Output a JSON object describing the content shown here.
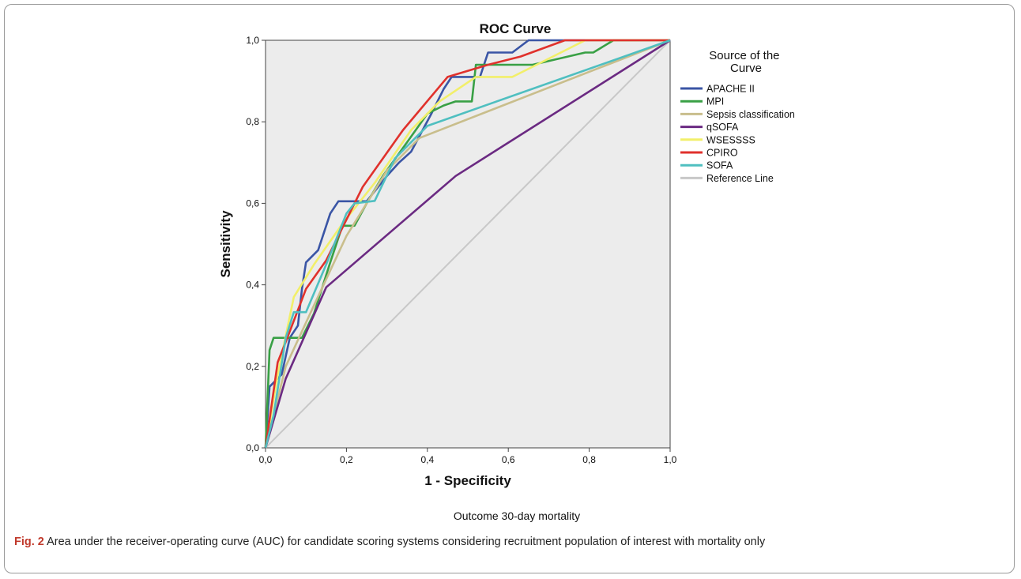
{
  "figure": {
    "label": "Fig. 2",
    "caption": "Area under the receiver-operating curve (AUC) for candidate scoring systems considering recruitment population of interest with mortality only"
  },
  "chart_data": {
    "type": "line",
    "title": "ROC Curve",
    "subtitle": "Outcome 30-day mortality",
    "xlabel": "1 - Specificity",
    "ylabel": "Sensitivity",
    "xlim": [
      0,
      1
    ],
    "ylim": [
      0,
      1
    ],
    "xticks": [
      "0,0",
      "0,2",
      "0,4",
      "0,6",
      "0,8",
      "1,0"
    ],
    "yticks": [
      "0,0",
      "0,2",
      "0,4",
      "0,6",
      "0,8",
      "1,0"
    ],
    "grid": false,
    "legend_title": "Source of the Curve",
    "legend_position": "right",
    "series": [
      {
        "name": "APACHE II",
        "color": "#3a55a5",
        "points": [
          [
            0,
            0
          ],
          [
            0.01,
            0.15
          ],
          [
            0.04,
            0.18
          ],
          [
            0.06,
            0.27
          ],
          [
            0.08,
            0.3
          ],
          [
            0.09,
            0.39
          ],
          [
            0.1,
            0.455
          ],
          [
            0.13,
            0.485
          ],
          [
            0.16,
            0.575
          ],
          [
            0.18,
            0.605
          ],
          [
            0.25,
            0.605
          ],
          [
            0.3,
            0.667
          ],
          [
            0.33,
            0.7
          ],
          [
            0.36,
            0.727
          ],
          [
            0.41,
            0.82
          ],
          [
            0.44,
            0.88
          ],
          [
            0.46,
            0.91
          ],
          [
            0.51,
            0.91
          ],
          [
            0.53,
            0.91
          ],
          [
            0.55,
            0.97
          ],
          [
            0.61,
            0.97
          ],
          [
            0.65,
            1.0
          ],
          [
            1.0,
            1.0
          ]
        ]
      },
      {
        "name": "MPI",
        "color": "#39a045",
        "points": [
          [
            0,
            0
          ],
          [
            0.01,
            0.24
          ],
          [
            0.02,
            0.27
          ],
          [
            0.09,
            0.27
          ],
          [
            0.12,
            0.33
          ],
          [
            0.16,
            0.455
          ],
          [
            0.19,
            0.545
          ],
          [
            0.22,
            0.545
          ],
          [
            0.25,
            0.6
          ],
          [
            0.29,
            0.667
          ],
          [
            0.35,
            0.75
          ],
          [
            0.4,
            0.82
          ],
          [
            0.44,
            0.84
          ],
          [
            0.47,
            0.85
          ],
          [
            0.51,
            0.85
          ],
          [
            0.52,
            0.94
          ],
          [
            0.66,
            0.94
          ],
          [
            0.79,
            0.97
          ],
          [
            0.81,
            0.97
          ],
          [
            0.86,
            1.0
          ],
          [
            1.0,
            1.0
          ]
        ]
      },
      {
        "name": "Sepsis classification",
        "color": "#c9be8c",
        "points": [
          [
            0,
            0
          ],
          [
            0.05,
            0.2
          ],
          [
            0.12,
            0.35
          ],
          [
            0.2,
            0.52
          ],
          [
            0.3,
            0.68
          ],
          [
            0.38,
            0.76
          ],
          [
            1.0,
            1.0
          ]
        ]
      },
      {
        "name": "qSOFA",
        "color": "#6b2a82",
        "points": [
          [
            0,
            0
          ],
          [
            0.05,
            0.17
          ],
          [
            0.15,
            0.394
          ],
          [
            0.47,
            0.667
          ],
          [
            1.0,
            1.0
          ]
        ]
      },
      {
        "name": "WSESSSS",
        "color": "#f2ef6a",
        "points": [
          [
            0,
            0
          ],
          [
            0.03,
            0.18
          ],
          [
            0.07,
            0.37
          ],
          [
            0.12,
            0.45
          ],
          [
            0.19,
            0.55
          ],
          [
            0.27,
            0.65
          ],
          [
            0.36,
            0.78
          ],
          [
            0.43,
            0.85
          ],
          [
            0.52,
            0.91
          ],
          [
            0.61,
            0.91
          ],
          [
            0.67,
            0.94
          ],
          [
            0.79,
            1.0
          ],
          [
            1.0,
            1.0
          ]
        ]
      },
      {
        "name": "CPIRO",
        "color": "#e0312c",
        "points": [
          [
            0,
            0
          ],
          [
            0.03,
            0.21
          ],
          [
            0.05,
            0.26
          ],
          [
            0.1,
            0.39
          ],
          [
            0.15,
            0.46
          ],
          [
            0.24,
            0.64
          ],
          [
            0.34,
            0.78
          ],
          [
            0.45,
            0.91
          ],
          [
            0.55,
            0.94
          ],
          [
            0.63,
            0.96
          ],
          [
            0.74,
            1.0
          ],
          [
            1.0,
            1.0
          ]
        ]
      },
      {
        "name": "SOFA",
        "color": "#4fbfc0",
        "points": [
          [
            0,
            0
          ],
          [
            0.02,
            0.08
          ],
          [
            0.05,
            0.27
          ],
          [
            0.07,
            0.333
          ],
          [
            0.1,
            0.333
          ],
          [
            0.15,
            0.45
          ],
          [
            0.2,
            0.575
          ],
          [
            0.22,
            0.6
          ],
          [
            0.27,
            0.606
          ],
          [
            0.32,
            0.71
          ],
          [
            0.37,
            0.76
          ],
          [
            0.4,
            0.79
          ],
          [
            1.0,
            1.0
          ]
        ]
      },
      {
        "name": "Reference Line",
        "color": "#c8c8c8",
        "points": [
          [
            0,
            0
          ],
          [
            1.0,
            1.0
          ]
        ]
      }
    ]
  }
}
